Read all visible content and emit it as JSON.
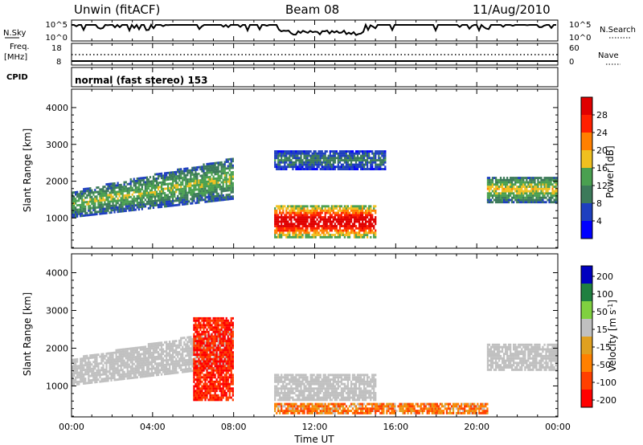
{
  "header": {
    "radar": "Unwin (fitACF)",
    "beam": "Beam 08",
    "date": "11/Aug/2010"
  },
  "nsky_panel": {
    "label_left": "N.Sky",
    "ticks_left": [
      "10^5",
      "10^0"
    ],
    "ticks_right": [
      "10^5",
      "10^0"
    ],
    "label_right": "N.Search"
  },
  "freq_panel": {
    "label_left_1": "Freq.",
    "label_left_2": "[MHz]",
    "ticks_left": [
      "18",
      "8"
    ],
    "ticks_right": [
      "60",
      "0"
    ],
    "label_right": "Nave"
  },
  "cpid_panel": {
    "label": "CPID",
    "program": "normal (fast stereo) 153"
  },
  "power_panel": {
    "ylabel": "Slant Range [km]",
    "yticks": [
      "1000",
      "2000",
      "3000",
      "4000"
    ],
    "colorbar_label": "Power [dB]",
    "colorbar_ticks": [
      "4",
      "8",
      "12",
      "16",
      "20",
      "24",
      "28"
    ]
  },
  "velocity_panel": {
    "ylabel": "Slant Range [km]",
    "yticks": [
      "1000",
      "2000",
      "3000",
      "4000"
    ],
    "colorbar_label": "Velocity [m s",
    "colorbar_label_sup": "-1",
    "colorbar_label_end": "]",
    "colorbar_ticks": [
      "200",
      "100",
      "50",
      "15",
      "-15",
      "-50",
      "-100",
      "-200"
    ]
  },
  "xaxis": {
    "label": "Time UT",
    "ticks": [
      "00:00",
      "04:00",
      "08:00",
      "12:00",
      "16:00",
      "20:00",
      "00:00"
    ]
  },
  "colors": {
    "power_scale": [
      "#0000ff",
      "#1e3fbf",
      "#3c7a5a",
      "#4aa050",
      "#f0c020",
      "#ff8000",
      "#ff2000",
      "#e00000"
    ],
    "velocity_scale": [
      "#ff0000",
      "#ff4000",
      "#ff8000",
      "#e0a020",
      "#c0c0c0",
      "#80d040",
      "#208040",
      "#0000c0"
    ],
    "ground_scatter": "#c0c0c0"
  },
  "chart_data": [
    {
      "type": "heatmap",
      "title": "Power",
      "xlabel": "Time UT",
      "ylabel": "Slant Range [km]",
      "xlim": [
        "00:00",
        "24:00"
      ],
      "ylim": [
        180,
        4500
      ],
      "colorbar": {
        "label": "Power [dB]",
        "range": [
          0,
          32
        ],
        "ticks": [
          4,
          8,
          12,
          16,
          20,
          24,
          28
        ]
      },
      "features": [
        {
          "time_start": "00:00",
          "time_end": "08:00",
          "range_start": 1000,
          "range_end": 2600,
          "power": 12,
          "note": "band rising with time"
        },
        {
          "time_start": "10:00",
          "time_end": "15:00",
          "range_start": 450,
          "range_end": 1300,
          "power": 26
        },
        {
          "time_start": "10:00",
          "time_end": "15:30",
          "range_start": 2300,
          "range_end": 2800,
          "power": 8
        },
        {
          "time_start": "20:30",
          "time_end": "24:00",
          "range_start": 1400,
          "range_end": 2100,
          "power": 14
        }
      ]
    },
    {
      "type": "heatmap",
      "title": "Velocity",
      "xlabel": "Time UT",
      "ylabel": "Slant Range [km]",
      "xlim": [
        "00:00",
        "24:00"
      ],
      "ylim": [
        180,
        4500
      ],
      "colorbar": {
        "label": "Velocity [m s^-1]",
        "range": [
          -250,
          250
        ],
        "ticks": [
          200,
          100,
          50,
          15,
          -15,
          -50,
          -100,
          -200
        ]
      },
      "features": [
        {
          "time_start": "00:00",
          "time_end": "08:00",
          "range_start": 1000,
          "range_end": 2500,
          "velocity": 0,
          "note": "ground scatter"
        },
        {
          "time_start": "06:00",
          "time_end": "08:00",
          "range_start": 600,
          "range_end": 2800,
          "velocity": -150
        },
        {
          "time_start": "10:00",
          "time_end": "15:00",
          "range_start": 600,
          "range_end": 1300,
          "velocity": 0
        },
        {
          "time_start": "10:00",
          "time_end": "20:30",
          "range_start": 250,
          "range_end": 500,
          "velocity": -60
        },
        {
          "time_start": "20:30",
          "time_end": "24:00",
          "range_start": 1400,
          "range_end": 2100,
          "velocity": 0
        }
      ]
    }
  ]
}
